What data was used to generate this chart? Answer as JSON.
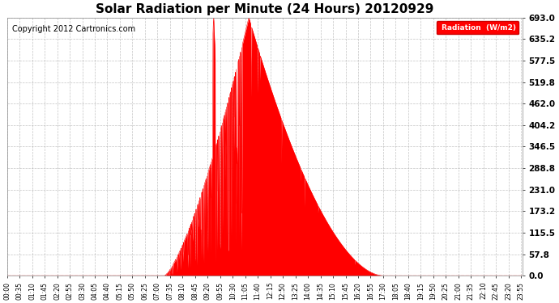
{
  "title": "Solar Radiation per Minute (24 Hours) 20120929",
  "copyright_text": "Copyright 2012 Cartronics.com",
  "legend_label": "Radiation  (W/m2)",
  "ytick_values": [
    0.0,
    57.8,
    115.5,
    173.2,
    231.0,
    288.8,
    346.5,
    404.2,
    462.0,
    519.8,
    577.5,
    635.2,
    693.0
  ],
  "ymax": 693.0,
  "ymin": 0.0,
  "fill_color": "#ff0000",
  "line_color": "#ff0000",
  "bg_color": "#ffffff",
  "grid_color": "#aaaaaa",
  "legend_bg": "#ff0000",
  "legend_text_color": "#ffffff",
  "title_fontsize": 11,
  "copyright_fontsize": 7,
  "tick_fontsize": 5.5,
  "ytick_fontsize": 7.5,
  "num_minutes": 1440,
  "sunrise": 438,
  "sunset": 1050,
  "peak_minute": 675,
  "peak_value": 693.0
}
